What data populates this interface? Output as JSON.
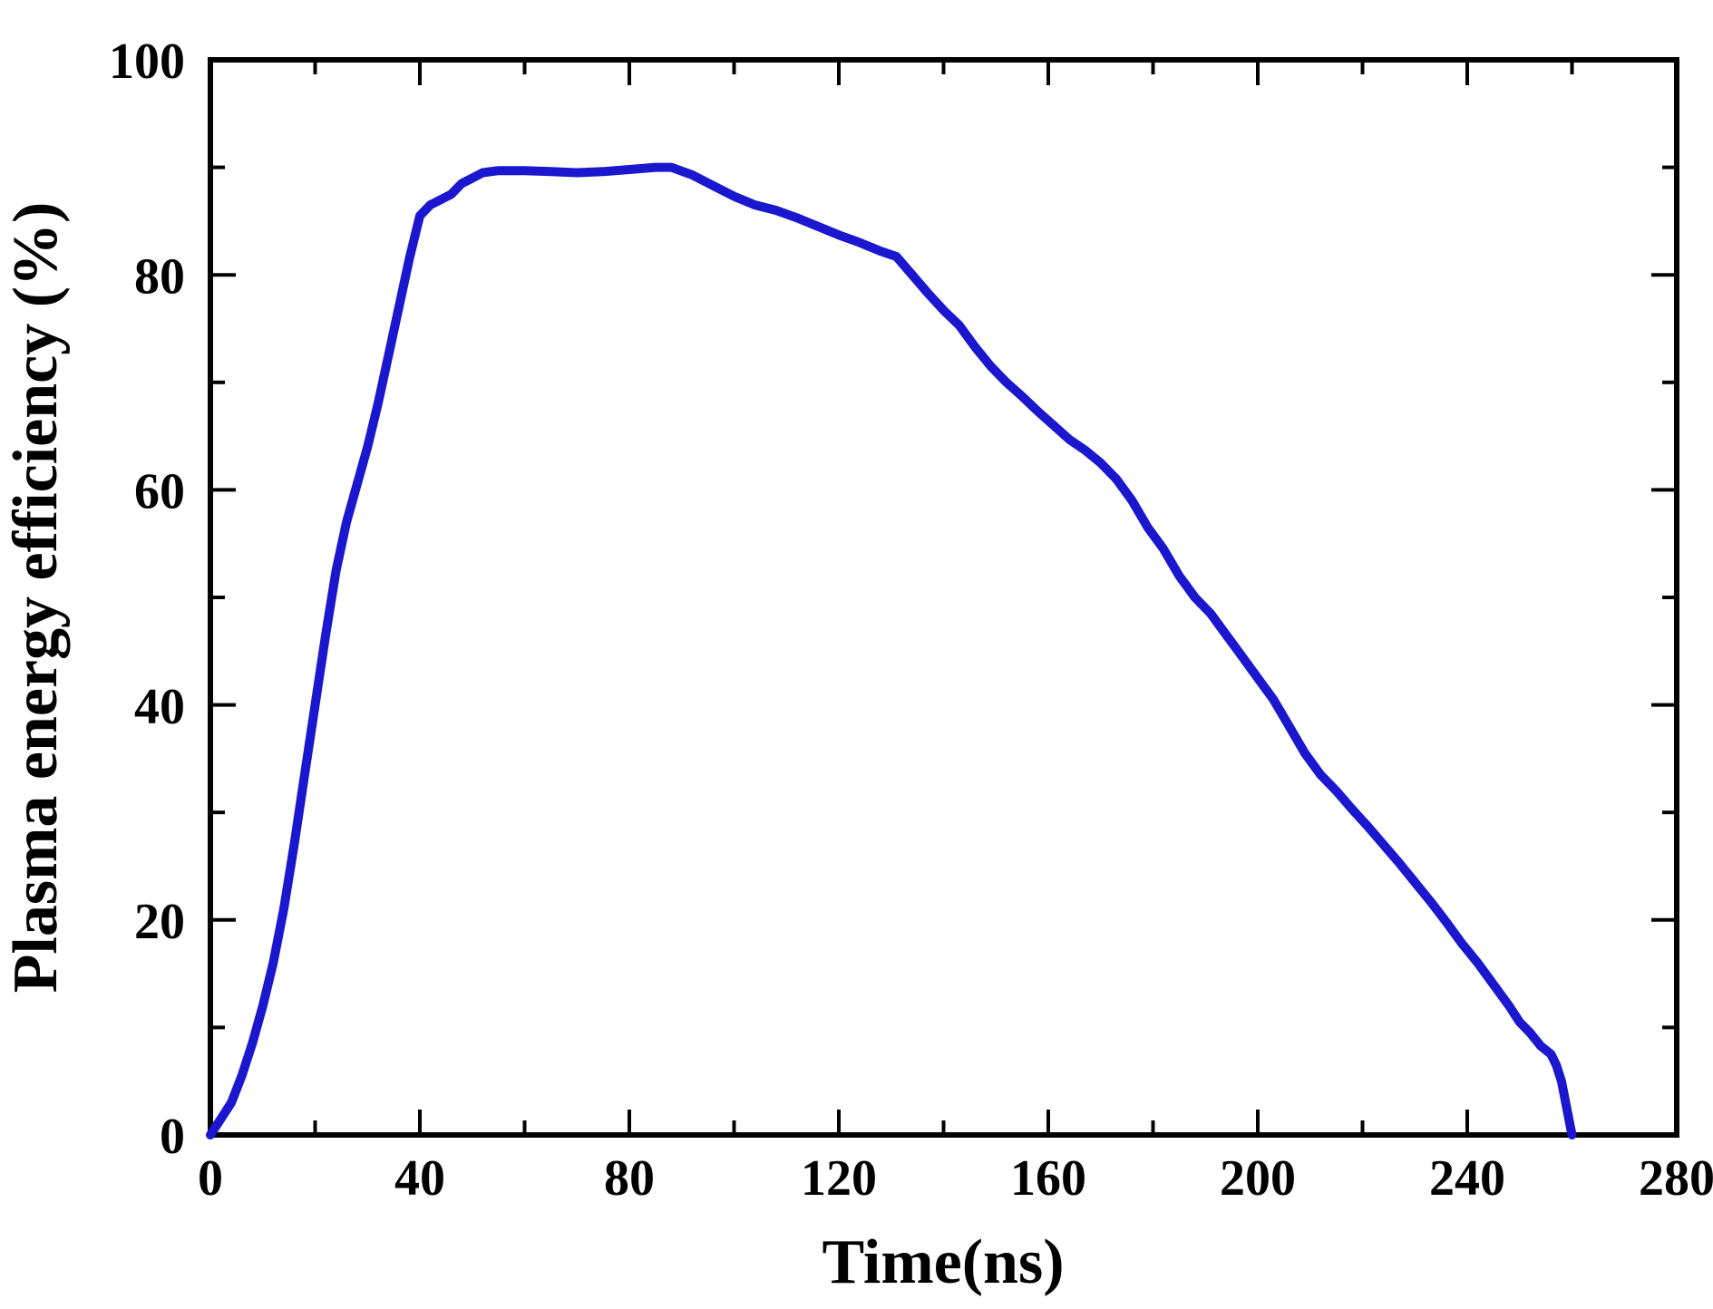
{
  "chart_data": {
    "type": "line",
    "title": "",
    "xlabel": "Time(ns)",
    "ylabel": "Plasma energy efficiency (%)",
    "xlim": [
      0,
      280
    ],
    "ylim": [
      0,
      100
    ],
    "x_major_ticks": [
      0,
      40,
      80,
      120,
      160,
      200,
      240,
      280
    ],
    "x_minor_step": 20,
    "y_major_ticks": [
      0,
      20,
      40,
      60,
      80,
      100
    ],
    "y_minor_step": 10,
    "grid": "off",
    "legend": "none",
    "line_color": "#1a17cf",
    "axis_color": "#000000",
    "series": [
      {
        "name": "Plasma energy efficiency",
        "x": [
          0,
          2,
          4,
          6,
          8,
          10,
          12,
          14,
          16,
          18,
          20,
          22,
          24,
          26,
          28,
          30,
          32,
          34,
          36,
          38,
          40,
          42,
          44,
          46,
          48,
          50,
          52,
          55,
          60,
          65,
          70,
          75,
          80,
          85,
          88,
          92,
          96,
          100,
          104,
          108,
          112,
          116,
          120,
          124,
          128,
          131,
          134,
          137,
          140,
          143,
          146,
          149,
          152,
          155,
          158,
          161,
          164,
          167,
          170,
          173,
          176,
          179,
          182,
          185,
          188,
          191,
          194,
          197,
          200,
          203,
          206,
          209,
          212,
          215,
          218,
          221,
          224,
          227,
          230,
          233,
          236,
          239,
          242,
          245,
          248,
          250,
          252,
          254,
          256,
          257,
          258,
          259,
          260
        ],
        "y": [
          0,
          1.5,
          3,
          5.5,
          8.5,
          12,
          16,
          21,
          27,
          33.5,
          40,
          46.5,
          52.5,
          57,
          60.5,
          64,
          68,
          72.5,
          77,
          81.5,
          85.5,
          86.5,
          87,
          87.5,
          88.5,
          89,
          89.5,
          89.7,
          89.7,
          89.6,
          89.5,
          89.6,
          89.8,
          90,
          90,
          89.3,
          88.3,
          87.3,
          86.5,
          86,
          85.3,
          84.5,
          83.7,
          83,
          82.2,
          81.7,
          80,
          78.3,
          76.7,
          75.3,
          73.3,
          71.5,
          70,
          68.7,
          67.3,
          66,
          64.7,
          63.7,
          62.5,
          61,
          59,
          56.5,
          54.5,
          52,
          50,
          48.5,
          46.5,
          44.5,
          42.5,
          40.5,
          38,
          35.5,
          33.5,
          32,
          30.3,
          28.7,
          27,
          25.3,
          23.5,
          21.7,
          19.8,
          17.8,
          16,
          14,
          12,
          10.5,
          9.5,
          8.3,
          7.5,
          6.5,
          5,
          2.5,
          0
        ]
      }
    ]
  }
}
